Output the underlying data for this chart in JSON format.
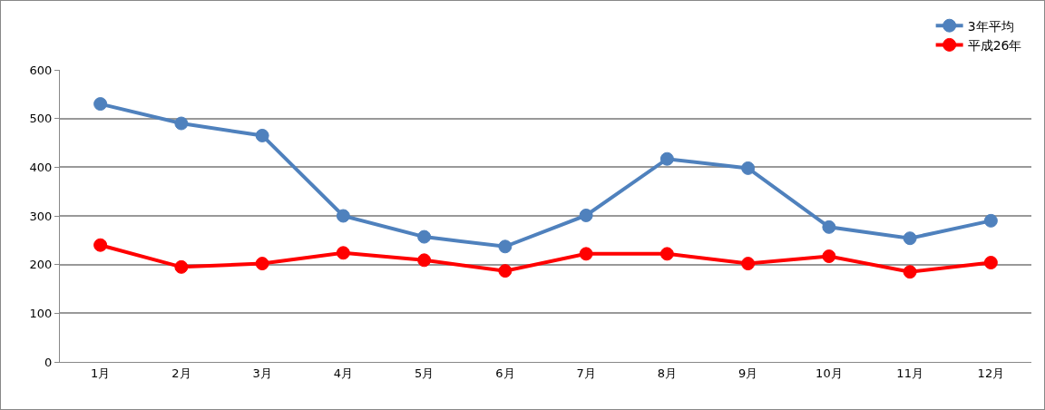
{
  "chart_data": {
    "type": "line",
    "categories": [
      "1月",
      "2月",
      "3月",
      "4月",
      "5月",
      "6月",
      "7月",
      "8月",
      "9月",
      "10月",
      "11月",
      "12月"
    ],
    "series": [
      {
        "name": "3年平均",
        "color": "#4f81bd",
        "values": [
          530,
          490,
          465,
          300,
          257,
          237,
          301,
          417,
          398,
          277,
          254,
          290
        ]
      },
      {
        "name": "平成26年",
        "color": "#ff0000",
        "values": [
          240,
          195,
          202,
          224,
          209,
          187,
          222,
          222,
          202,
          217,
          185,
          204
        ]
      }
    ],
    "ylim": [
      0,
      600
    ],
    "yticks": [
      0,
      100,
      200,
      300,
      400,
      500,
      600
    ],
    "grid": "y",
    "legend": "top right",
    "marker": "circle",
    "line_style": "solid"
  }
}
